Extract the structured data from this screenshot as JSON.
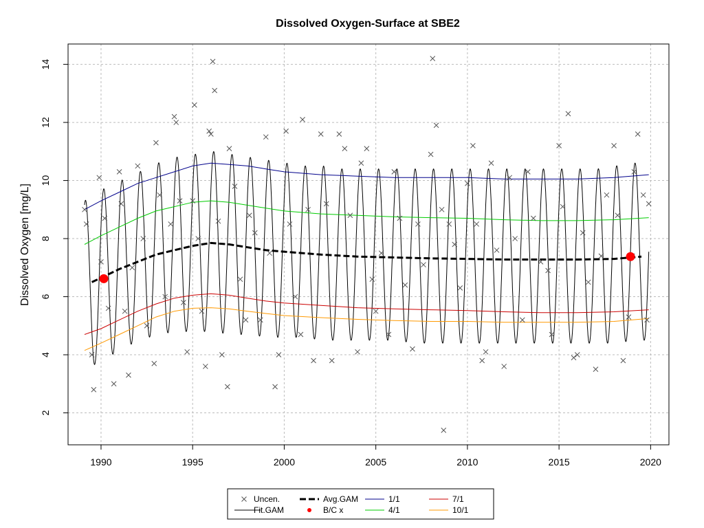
{
  "chart_data": {
    "type": "line",
    "title": "Dissolved Oxygen-Surface at SBE2",
    "xlabel": "",
    "ylabel": "Dissolved Oxygen [mg/L]",
    "xlim": [
      1988.2,
      2021.0
    ],
    "ylim": [
      0.9,
      14.7
    ],
    "x_ticks": [
      1990,
      1995,
      2000,
      2005,
      2010,
      2015,
      2020
    ],
    "y_ticks": [
      2,
      4,
      6,
      8,
      10,
      12,
      14
    ],
    "grid": true,
    "legend_placement": "bottom",
    "legend": {
      "items": [
        {
          "key": "uncen",
          "label": "Uncen."
        },
        {
          "key": "fit",
          "label": "Fit.GAM"
        },
        {
          "key": "avg",
          "label": "Avg.GAM"
        },
        {
          "key": "bc",
          "label": "B/C x"
        },
        {
          "key": "p11",
          "label": "1/1"
        },
        {
          "key": "p41",
          "label": "4/1"
        },
        {
          "key": "p71",
          "label": "7/1"
        },
        {
          "key": "p101",
          "label": "10/1"
        }
      ]
    },
    "colors": {
      "uncen": "#555555",
      "fit": "#000000",
      "avg": "#000000",
      "bc": "#ff0000",
      "p11": "#00008b",
      "p41": "#00cc00",
      "p71": "#cc0000",
      "p101": "#ff9900",
      "grid": "#bbbbbb"
    },
    "series": [
      {
        "key": "p11",
        "x": [
          1989.1,
          1990,
          1991,
          1992,
          1993,
          1994,
          1995,
          1996,
          1997,
          1998,
          1999,
          2000,
          2002,
          2004,
          2006,
          2008,
          2010,
          2012,
          2014,
          2016,
          2018,
          2019.9
        ],
        "values": [
          9.0,
          9.3,
          9.6,
          9.9,
          10.1,
          10.3,
          10.5,
          10.6,
          10.55,
          10.5,
          10.4,
          10.3,
          10.2,
          10.15,
          10.1,
          10.1,
          10.1,
          10.05,
          10.05,
          10.05,
          10.1,
          10.2
        ]
      },
      {
        "key": "p41",
        "x": [
          1989.1,
          1990,
          1991,
          1992,
          1993,
          1994,
          1995,
          1996,
          1997,
          1998,
          1999,
          2000,
          2002,
          2004,
          2006,
          2008,
          2010,
          2012,
          2014,
          2016,
          2018,
          2019.9
        ],
        "values": [
          7.8,
          8.1,
          8.4,
          8.7,
          8.95,
          9.1,
          9.25,
          9.3,
          9.25,
          9.15,
          9.05,
          8.95,
          8.85,
          8.8,
          8.75,
          8.72,
          8.7,
          8.65,
          8.62,
          8.62,
          8.65,
          8.72
        ]
      },
      {
        "key": "p71",
        "x": [
          1989.1,
          1990,
          1991,
          1992,
          1993,
          1994,
          1995,
          1996,
          1997,
          1998,
          1999,
          2000,
          2002,
          2004,
          2006,
          2008,
          2010,
          2012,
          2014,
          2016,
          2018,
          2019.9
        ],
        "values": [
          4.7,
          4.9,
          5.2,
          5.5,
          5.75,
          5.95,
          6.05,
          6.1,
          6.05,
          5.95,
          5.85,
          5.78,
          5.7,
          5.62,
          5.58,
          5.55,
          5.52,
          5.48,
          5.45,
          5.45,
          5.48,
          5.55
        ]
      },
      {
        "key": "p101",
        "x": [
          1989.1,
          1990,
          1991,
          1992,
          1993,
          1994,
          1995,
          1996,
          1997,
          1998,
          1999,
          2000,
          2002,
          2004,
          2006,
          2008,
          2010,
          2012,
          2014,
          2016,
          2018,
          2019.9
        ],
        "values": [
          4.15,
          4.4,
          4.7,
          5.0,
          5.3,
          5.5,
          5.6,
          5.62,
          5.58,
          5.5,
          5.42,
          5.35,
          5.28,
          5.22,
          5.18,
          5.15,
          5.15,
          5.12,
          5.12,
          5.12,
          5.15,
          5.25
        ]
      },
      {
        "key": "avg",
        "x": [
          1989.5,
          1990,
          1991,
          1992,
          1993,
          1994,
          1995,
          1996,
          1997,
          1998,
          1999,
          2000,
          2002,
          2004,
          2006,
          2008,
          2010,
          2012,
          2014,
          2016,
          2018,
          2019.5
        ],
        "values": [
          6.5,
          6.65,
          6.95,
          7.2,
          7.45,
          7.6,
          7.75,
          7.85,
          7.8,
          7.7,
          7.6,
          7.55,
          7.45,
          7.38,
          7.35,
          7.32,
          7.3,
          7.28,
          7.28,
          7.28,
          7.3,
          7.38
        ]
      }
    ],
    "fit_gam": {
      "key": "fit",
      "peak_time": 0.15,
      "years": [
        1989.1,
        1990.1,
        1991.1,
        1992.1,
        1993.1,
        1994.1,
        1995.1,
        1996.1,
        1997.1,
        1998.1,
        1999.1,
        2000.1,
        2001.1,
        2002.1,
        2003.1,
        2004.1,
        2005.1,
        2006.1,
        2007.1,
        2008.1,
        2009.1,
        2010.1,
        2011.1,
        2012.1,
        2013.1,
        2014.1,
        2015.1,
        2016.1,
        2017.1,
        2018.1,
        2019.1
      ],
      "peaks": [
        9.3,
        9.7,
        10.0,
        10.3,
        10.6,
        10.8,
        10.9,
        11.0,
        10.9,
        10.8,
        10.7,
        10.6,
        10.5,
        10.5,
        10.4,
        10.4,
        10.4,
        10.4,
        10.4,
        10.4,
        10.4,
        10.4,
        10.4,
        10.4,
        10.4,
        10.4,
        10.4,
        10.4,
        10.4,
        10.5,
        10.6
      ],
      "troughs": [
        3.5,
        3.8,
        4.2,
        4.5,
        4.7,
        4.8,
        4.8,
        4.8,
        4.7,
        4.7,
        4.6,
        4.6,
        4.6,
        4.5,
        4.5,
        4.5,
        4.5,
        4.5,
        4.4,
        4.4,
        4.4,
        4.4,
        4.4,
        4.4,
        4.4,
        4.4,
        4.4,
        4.4,
        4.4,
        4.4,
        4.5
      ]
    },
    "bc_points": {
      "key": "bc",
      "x": [
        1990.15,
        2018.9
      ],
      "values": [
        6.62,
        7.38
      ]
    },
    "uncen_points": {
      "key": "uncen",
      "x": [
        1989.1,
        1989.2,
        1989.5,
        1989.6,
        1989.9,
        1990.0,
        1990.2,
        1990.4,
        1990.7,
        1991.0,
        1991.1,
        1991.3,
        1991.5,
        1991.7,
        1992.0,
        1992.3,
        1992.5,
        1992.9,
        1993.0,
        1993.2,
        1993.5,
        1993.8,
        1994.0,
        1994.1,
        1994.3,
        1994.5,
        1994.7,
        1995.0,
        1995.1,
        1995.3,
        1995.5,
        1995.7,
        1995.9,
        1996.0,
        1996.1,
        1996.2,
        1996.4,
        1996.6,
        1996.9,
        1997.0,
        1997.3,
        1997.6,
        1997.9,
        1998.1,
        1998.4,
        1998.7,
        1999.0,
        1999.2,
        1999.5,
        1999.7,
        2000.1,
        2000.3,
        2000.6,
        2000.9,
        2001.0,
        2001.3,
        2001.6,
        2002.0,
        2002.3,
        2002.6,
        2003.0,
        2003.3,
        2003.6,
        2004.0,
        2004.2,
        2004.5,
        2004.8,
        2005.0,
        2005.3,
        2005.7,
        2006.0,
        2006.3,
        2006.6,
        2007.0,
        2007.3,
        2007.6,
        2008.0,
        2008.1,
        2008.3,
        2008.6,
        2008.7,
        2009.0,
        2009.3,
        2009.6,
        2010.0,
        2010.3,
        2010.5,
        2010.8,
        2011.0,
        2011.3,
        2011.6,
        2012.0,
        2012.3,
        2012.6,
        2013.0,
        2013.3,
        2013.6,
        2014.0,
        2014.4,
        2014.6,
        2015.0,
        2015.2,
        2015.5,
        2015.8,
        2016.0,
        2016.3,
        2016.6,
        2017.0,
        2017.3,
        2017.6,
        2018.0,
        2018.2,
        2018.5,
        2018.8,
        2019.0,
        2019.1,
        2019.3,
        2019.6,
        2019.8,
        2019.9
      ],
      "values": [
        9.0,
        8.5,
        4.0,
        2.8,
        10.1,
        7.2,
        8.7,
        5.6,
        3.0,
        10.3,
        9.2,
        5.5,
        3.3,
        7.0,
        10.5,
        8.0,
        5.0,
        3.7,
        11.3,
        9.5,
        6.0,
        8.5,
        12.2,
        12.0,
        9.3,
        5.8,
        4.1,
        9.3,
        12.6,
        8.0,
        5.5,
        3.6,
        11.7,
        11.6,
        14.1,
        13.1,
        8.6,
        4.0,
        2.9,
        11.1,
        9.8,
        6.6,
        5.2,
        8.8,
        8.2,
        5.2,
        11.5,
        7.5,
        2.9,
        4.0,
        11.7,
        8.5,
        6.0,
        4.7,
        12.1,
        9.0,
        3.8,
        11.6,
        9.2,
        3.8,
        11.6,
        11.1,
        8.8,
        4.1,
        10.6,
        11.1,
        6.6,
        5.5,
        7.5,
        4.7,
        10.3,
        8.7,
        6.4,
        4.2,
        8.5,
        7.1,
        10.9,
        14.2,
        11.9,
        9.0,
        1.4,
        8.5,
        7.8,
        6.3,
        9.9,
        11.2,
        8.5,
        3.8,
        4.1,
        10.6,
        7.6,
        3.6,
        10.1,
        8.0,
        5.2,
        10.3,
        8.7,
        7.2,
        6.9,
        4.7,
        11.2,
        9.1,
        12.3,
        3.9,
        4.0,
        8.2,
        6.5,
        3.5,
        7.4,
        9.5,
        11.2,
        8.8,
        3.8,
        5.3,
        7.4,
        10.3,
        11.6,
        9.5,
        5.2,
        9.2
      ]
    }
  }
}
